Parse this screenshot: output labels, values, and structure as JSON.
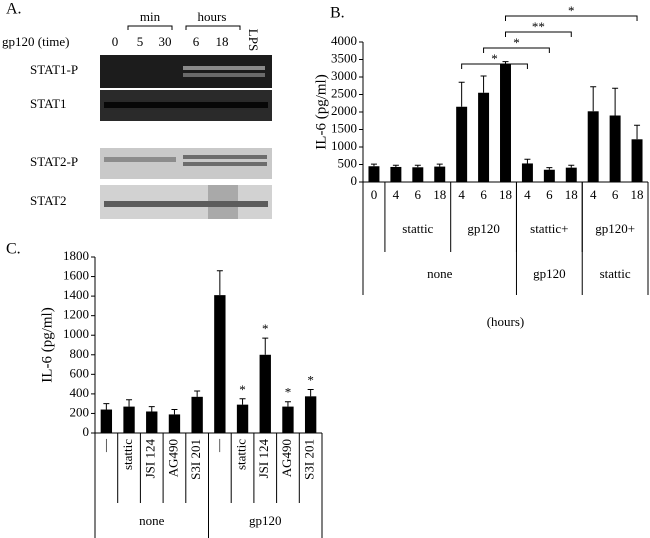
{
  "panel_a": {
    "label": "A.",
    "min": "min",
    "hours": "hours",
    "time": "gp120 (time)",
    "lanes": [
      "0",
      "5",
      "30",
      "6",
      "18",
      "LPS"
    ],
    "rows": [
      "STAT1-P",
      "STAT1",
      "STAT2-P",
      "STAT2"
    ]
  },
  "chart_data": [
    {
      "type": "bar",
      "panel": "B.",
      "y_label": "IL-6 (pg/ml)",
      "x_label": "(hours)",
      "categories": [
        "0",
        "4",
        "6",
        "18",
        "4",
        "6",
        "18",
        "4",
        "6",
        "18",
        "4",
        "6",
        "18"
      ],
      "series": [
        {
          "color": "#000000",
          "values": [
            450,
            430,
            420,
            440,
            2150,
            2550,
            3380,
            530,
            350,
            410,
            2020,
            1900,
            1220
          ],
          "errors": [
            60,
            50,
            60,
            70,
            700,
            480,
            60,
            120,
            60,
            70,
            700,
            780,
            400
          ]
        }
      ],
      "group_labels": [
        "stattic",
        "gp120",
        "stattic+",
        "gp120+"
      ],
      "group_labels_2": [
        "none",
        "gp120",
        "stattic"
      ],
      "annotations": [
        "*",
        "*",
        "**",
        "*"
      ],
      "ylim": [
        0,
        4000
      ],
      "yticks": [
        0,
        500,
        1000,
        1500,
        2000,
        2500,
        3000,
        3500,
        4000
      ]
    },
    {
      "type": "bar",
      "panel": "C.",
      "y_label": "IL-6 (pg/ml)",
      "categories": [
        "—",
        "stattic",
        "JSI 124",
        "AG490",
        "S3I 201",
        "—",
        "stattic",
        "JSI 124",
        "AG490",
        "S3I 201"
      ],
      "series": [
        {
          "color": "#000000",
          "values": [
            240,
            270,
            220,
            190,
            370,
            1410,
            290,
            800,
            270,
            375
          ],
          "errors": [
            60,
            70,
            50,
            50,
            60,
            250,
            60,
            170,
            50,
            70
          ]
        }
      ],
      "group_labels": [
        "none",
        "gp120"
      ],
      "annotations": [
        "*",
        "*",
        "*",
        "*"
      ],
      "ylim": [
        0,
        1800
      ],
      "yticks": [
        0,
        200,
        400,
        600,
        800,
        1000,
        1200,
        1400,
        1600,
        1800
      ]
    }
  ]
}
